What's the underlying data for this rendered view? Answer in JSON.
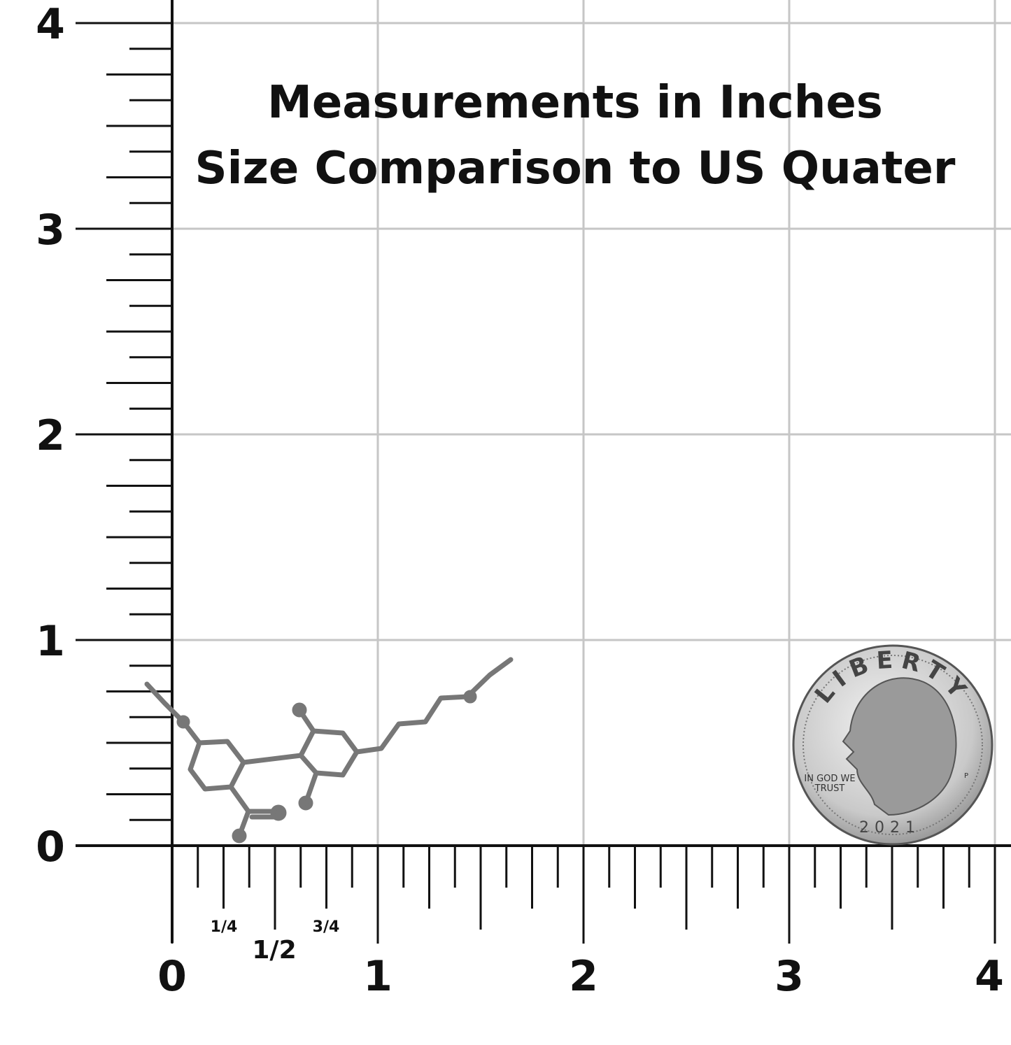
{
  "title": {
    "line1": "Measurements in Inches",
    "line2": "Size Comparison to US Quater"
  },
  "y_axis": {
    "labels": [
      "0",
      "1",
      "2",
      "3",
      "4"
    ]
  },
  "x_axis": {
    "labels": [
      "0",
      "1",
      "2",
      "3",
      "4"
    ],
    "fraction_labels": [
      "1/4",
      "1/2",
      "3/4"
    ]
  },
  "coin": {
    "top_text": "LIBERTY",
    "motto_line1": "IN GOD WE",
    "motto_line2": "TRUST",
    "year": "2021",
    "mint_mark": "P"
  }
}
